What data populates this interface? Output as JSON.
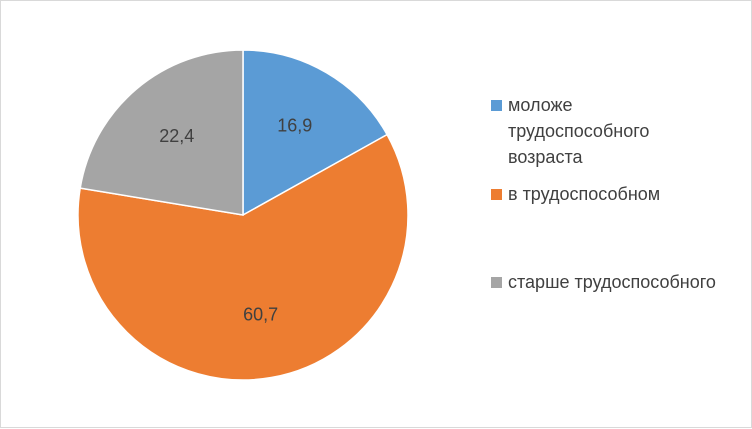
{
  "chart_data": {
    "type": "pie",
    "title": "",
    "categories": [
      "моложе трудоспособного возраста",
      "в трудоспособном",
      "старше трудоспособного"
    ],
    "values": [
      16.9,
      60.7,
      22.4
    ],
    "value_labels": [
      "16,9",
      "60,7",
      "22,4"
    ],
    "colors": [
      "#5B9BD5",
      "#ED7D31",
      "#A5A5A5"
    ],
    "start_angle": "12 o'clock",
    "direction": "clockwise",
    "legend_position": "right"
  },
  "legend": {
    "items": [
      {
        "label": "моложе трудоспособного возраста",
        "color": "#5B9BD5"
      },
      {
        "label": "в трудоспособном",
        "color": "#ED7D31"
      },
      {
        "label": "старше трудоспособного",
        "color": "#A5A5A5"
      }
    ]
  }
}
